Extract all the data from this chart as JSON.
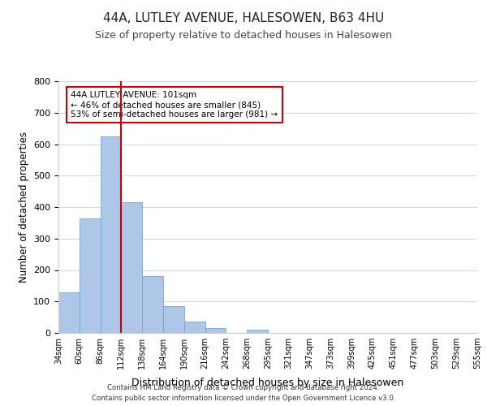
{
  "title": "44A, LUTLEY AVENUE, HALESOWEN, B63 4HU",
  "subtitle": "Size of property relative to detached houses in Halesowen",
  "xlabel": "Distribution of detached houses by size in Halesowen",
  "ylabel": "Number of detached properties",
  "bar_values": [
    130,
    365,
    625,
    415,
    180,
    85,
    35,
    15,
    0,
    10,
    0,
    0,
    0,
    0,
    0,
    0,
    0,
    0,
    0,
    0
  ],
  "bin_labels": [
    "34sqm",
    "60sqm",
    "86sqm",
    "112sqm",
    "138sqm",
    "164sqm",
    "190sqm",
    "216sqm",
    "242sqm",
    "268sqm",
    "295sqm",
    "321sqm",
    "347sqm",
    "373sqm",
    "399sqm",
    "425sqm",
    "451sqm",
    "477sqm",
    "503sqm",
    "529sqm",
    "555sqm"
  ],
  "bar_color": "#aec6e8",
  "bar_edge_color": "#5a9fd4",
  "vline_x": 2,
  "vline_color": "#cc0000",
  "ylim": [
    0,
    800
  ],
  "yticks": [
    0,
    100,
    200,
    300,
    400,
    500,
    600,
    700,
    800
  ],
  "annotation_title": "44A LUTLEY AVENUE: 101sqm",
  "annotation_line1": "← 46% of detached houses are smaller (845)",
  "annotation_line2": "53% of semi-detached houses are larger (981) →",
  "annotation_box_color": "#ffffff",
  "annotation_box_edge": "#cc0000",
  "footer_line1": "Contains HM Land Registry data © Crown copyright and database right 2024.",
  "footer_line2": "Contains public sector information licensed under the Open Government Licence v3.0.",
  "background_color": "#ffffff",
  "grid_color": "#d0d8e8"
}
